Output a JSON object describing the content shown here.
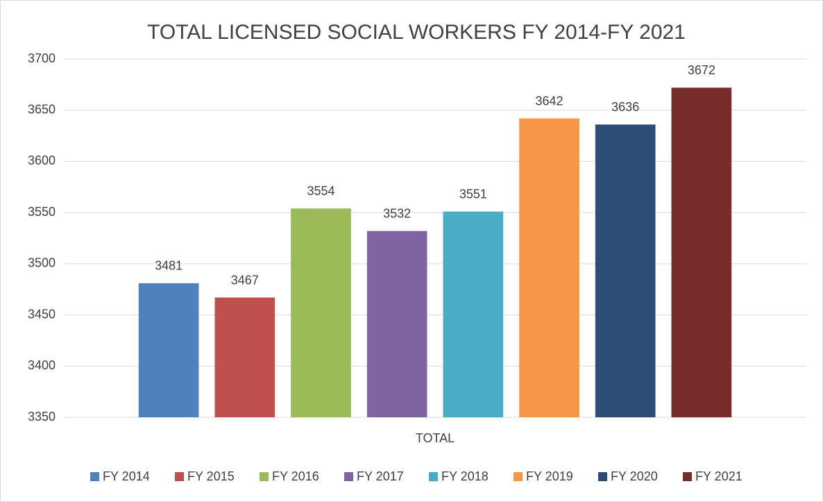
{
  "chart_data": {
    "type": "bar",
    "title": "TOTAL LICENSED SOCIAL WORKERS FY 2014-FY 2021",
    "categories": [
      "TOTAL"
    ],
    "series": [
      {
        "name": "FY 2014",
        "color": "#4f81bd",
        "values": [
          3481
        ]
      },
      {
        "name": "FY 2015",
        "color": "#c0504d",
        "values": [
          3467
        ]
      },
      {
        "name": "FY 2016",
        "color": "#9bbb59",
        "values": [
          3554
        ]
      },
      {
        "name": "FY 2017",
        "color": "#8064a2",
        "values": [
          3532
        ]
      },
      {
        "name": "FY 2018",
        "color": "#4bacc6",
        "values": [
          3551
        ]
      },
      {
        "name": "FY 2019",
        "color": "#f79646",
        "values": [
          3642
        ]
      },
      {
        "name": "FY 2020",
        "color": "#2c4d75",
        "values": [
          3636
        ]
      },
      {
        "name": "FY 2021",
        "color": "#772c2a",
        "values": [
          3672
        ]
      }
    ],
    "ylim": [
      3350,
      3700
    ],
    "yticks": [
      3350,
      3400,
      3450,
      3500,
      3550,
      3600,
      3650,
      3700
    ],
    "grid": true,
    "legend": "bottom"
  }
}
